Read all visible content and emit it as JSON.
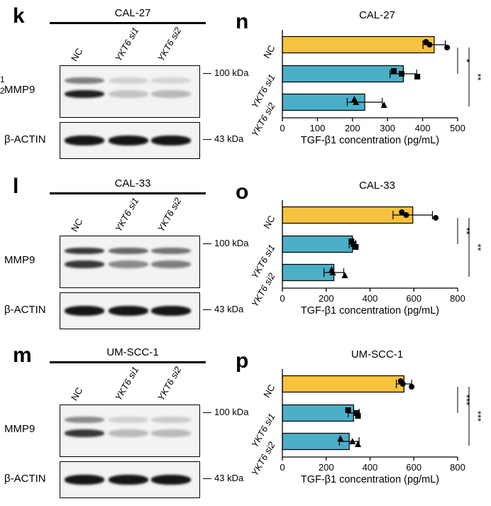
{
  "figure": {
    "side_numbers": [
      "1",
      "2"
    ],
    "colors": {
      "nc_bar": "#F7C23E",
      "si_bar": "#4BAFC8",
      "band_dark": "#1a1a1a",
      "blot_bg": "#f2f2f2"
    },
    "blots": [
      {
        "letter": "k",
        "cell_line": "CAL-27",
        "lanes": [
          "NC",
          "YKT6 si1",
          "YKT6 si2"
        ],
        "rows": [
          {
            "label": "MMP9",
            "marker": "100 kDa"
          },
          {
            "label": "β-ACTIN",
            "marker": "43 kDa"
          }
        ],
        "mmp9_band_intensity": [
          [
            0.55,
            0.95
          ],
          [
            0.2,
            0.25
          ],
          [
            0.18,
            0.3
          ]
        ]
      },
      {
        "letter": "l",
        "cell_line": "CAL-33",
        "lanes": [
          "NC",
          "YKT6 si1",
          "YKT6 si2"
        ],
        "rows": [
          {
            "label": "MMP9",
            "marker": "100 kDa"
          },
          {
            "label": "β-ACTIN",
            "marker": "43 kDa"
          }
        ],
        "mmp9_band_intensity": [
          [
            0.85,
            0.85
          ],
          [
            0.65,
            0.5
          ],
          [
            0.6,
            0.55
          ]
        ]
      },
      {
        "letter": "m",
        "cell_line": "UM-SCC-1",
        "lanes": [
          "NC",
          "YKT6 si1",
          "YKT6 si2"
        ],
        "rows": [
          {
            "label": "MMP9",
            "marker": "100 kDa"
          },
          {
            "label": "β-ACTIN",
            "marker": "43 kDa"
          }
        ],
        "mmp9_band_intensity": [
          [
            0.5,
            0.85
          ],
          [
            0.2,
            0.3
          ],
          [
            0.22,
            0.3
          ]
        ]
      }
    ]
  },
  "chart_data": [
    {
      "letter": "n",
      "type": "bar",
      "orientation": "horizontal",
      "title": "CAL-27",
      "categories": [
        "NC",
        "YKT6 si1",
        "YKT6 si2"
      ],
      "values": [
        433,
        345,
        235
      ],
      "errors": [
        32,
        38,
        50
      ],
      "points": [
        [
          410,
          420,
          470
        ],
        [
          318,
          340,
          385
        ],
        [
          205,
          210,
          290
        ]
      ],
      "point_markers": [
        "circle",
        "square",
        "triangle"
      ],
      "xlabel": "TGF-β1 concentration (pg/mL)",
      "xlim": [
        0,
        500
      ],
      "xticks": [
        0,
        100,
        200,
        300,
        400,
        500
      ],
      "significance": [
        {
          "from": 0,
          "to": 1,
          "label": "*"
        },
        {
          "from": 0,
          "to": 2,
          "label": "**"
        }
      ]
    },
    {
      "letter": "o",
      "type": "bar",
      "orientation": "horizontal",
      "title": "CAL-33",
      "categories": [
        "NC",
        "YKT6 si1",
        "YKT6 si2"
      ],
      "values": [
        595,
        320,
        235
      ],
      "errors": [
        90,
        15,
        45
      ],
      "points": [
        [
          545,
          565,
          700
        ],
        [
          315,
          325,
          335
        ],
        [
          225,
          230,
          285
        ]
      ],
      "point_markers": [
        "circle",
        "square",
        "triangle"
      ],
      "xlabel": "TGF-β1 concentration (pg/mL)",
      "xlim": [
        0,
        800
      ],
      "xticks": [
        0,
        200,
        400,
        600,
        800
      ],
      "significance": [
        {
          "from": 0,
          "to": 1,
          "label": "**"
        },
        {
          "from": 0,
          "to": 2,
          "label": "**"
        }
      ]
    },
    {
      "letter": "p",
      "type": "bar",
      "orientation": "horizontal",
      "title": "UM-SCC-1",
      "categories": [
        "NC",
        "YKT6 si1",
        "YKT6 si2"
      ],
      "values": [
        555,
        325,
        305
      ],
      "errors": [
        35,
        25,
        45
      ],
      "points": [
        [
          540,
          550,
          590
        ],
        [
          300,
          340,
          345
        ],
        [
          265,
          320,
          345
        ]
      ],
      "point_markers": [
        "circle",
        "square",
        "triangle"
      ],
      "xlabel": "TGF-β1 concentration (pg/mL)",
      "xlim": [
        0,
        800
      ],
      "xticks": [
        0,
        200,
        400,
        600,
        800
      ],
      "significance": [
        {
          "from": 0,
          "to": 1,
          "label": "***"
        },
        {
          "from": 0,
          "to": 2,
          "label": "***"
        }
      ]
    }
  ]
}
